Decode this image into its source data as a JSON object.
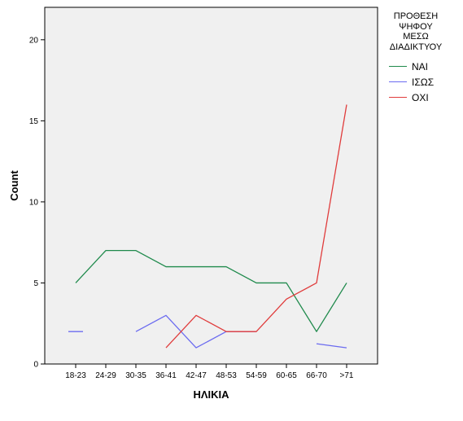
{
  "chart_data": {
    "type": "line",
    "categories": [
      "18-23",
      "24-29",
      "30-35",
      "36-41",
      "42-47",
      "48-53",
      "54-59",
      "60-65",
      "66-70",
      ">71"
    ],
    "xlabel": "ΗΛΙΚΙΑ",
    "ylabel": "Count",
    "ylim": [
      0,
      22
    ],
    "yticks": [
      "0",
      "5",
      "10",
      "15",
      "20"
    ],
    "grid": false,
    "legend_position": "right",
    "legend_title": [
      "ΠΡΟΘΕΣΗ",
      "ΨΗΦΟΥ",
      "ΜΕΣΩ",
      "ΔΙΑΔΙΚΤΥΟΥ"
    ],
    "series": [
      {
        "name": "ΝΑΙ",
        "color": "#1f8a4c",
        "values": [
          5,
          7,
          7,
          6,
          6,
          6,
          5,
          5,
          2,
          5
        ]
      },
      {
        "name": "ΙΣΩΣ",
        "color": "#6b6bf0",
        "values": [
          2,
          null,
          2,
          3,
          1,
          2,
          2,
          null,
          1.25,
          1
        ]
      },
      {
        "name": "ΟΧΙ",
        "color": "#e03c3c",
        "values": [
          null,
          null,
          null,
          1,
          3,
          2,
          2,
          4,
          5,
          16
        ]
      }
    ]
  }
}
